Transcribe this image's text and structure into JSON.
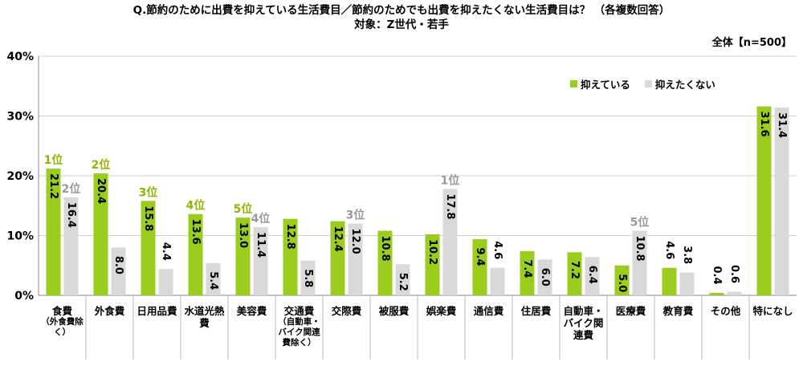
{
  "title_line1": "Q.節約のために出費を抑えている生活費目／節約のためでも出費を抑えたくない生活費目は？ （各複数回答）",
  "title_line2": "対象：Z世代・若手",
  "base_label": "全体【n=500】",
  "colors": {
    "series1": "#9ACD1E",
    "series2": "#D9D9D9",
    "rank1": "#8DB600",
    "rank2": "#9A9A9A"
  },
  "chart_data": {
    "type": "bar",
    "ylim": [
      0,
      40
    ],
    "yticks": [
      "0%",
      "10%",
      "20%",
      "30%",
      "40%"
    ],
    "categories": [
      {
        "label": "食費",
        "note": "（外食費除く）"
      },
      {
        "label": "外食費",
        "note": ""
      },
      {
        "label": "日用品費",
        "note": ""
      },
      {
        "label": "水道光熱費",
        "note": ""
      },
      {
        "label": "美容費",
        "note": ""
      },
      {
        "label": "交通費",
        "note": "（自動車・バイク関連費除く）"
      },
      {
        "label": "交際費",
        "note": ""
      },
      {
        "label": "被服費",
        "note": ""
      },
      {
        "label": "娯楽費",
        "note": ""
      },
      {
        "label": "通信費",
        "note": ""
      },
      {
        "label": "住居費",
        "note": ""
      },
      {
        "label": "自動車・バイク関連費",
        "note": ""
      },
      {
        "label": "医療費",
        "note": ""
      },
      {
        "label": "教育費",
        "note": ""
      },
      {
        "label": "その他",
        "note": ""
      },
      {
        "label": "特になし",
        "note": ""
      }
    ],
    "series": [
      {
        "name": "抑えている",
        "values": [
          21.2,
          20.4,
          15.8,
          13.6,
          13.0,
          12.8,
          12.4,
          10.8,
          10.2,
          9.4,
          7.4,
          7.2,
          5.0,
          4.6,
          0.4,
          31.6
        ]
      },
      {
        "name": "抑えたくない",
        "values": [
          16.4,
          8.0,
          4.4,
          5.4,
          11.4,
          5.8,
          12.0,
          5.2,
          17.8,
          4.6,
          6.0,
          6.4,
          10.8,
          3.8,
          0.6,
          31.4
        ]
      }
    ],
    "ranks": [
      {
        "series": 0,
        "category": 0,
        "label": "1位"
      },
      {
        "series": 0,
        "category": 1,
        "label": "2位"
      },
      {
        "series": 0,
        "category": 2,
        "label": "3位"
      },
      {
        "series": 0,
        "category": 3,
        "label": "4位"
      },
      {
        "series": 0,
        "category": 4,
        "label": "5位"
      },
      {
        "series": 1,
        "category": 0,
        "label": "2位"
      },
      {
        "series": 1,
        "category": 4,
        "label": "4位"
      },
      {
        "series": 1,
        "category": 6,
        "label": "3位"
      },
      {
        "series": 1,
        "category": 8,
        "label": "1位"
      },
      {
        "series": 1,
        "category": 12,
        "label": "5位"
      }
    ],
    "legend_position": "top-right"
  }
}
